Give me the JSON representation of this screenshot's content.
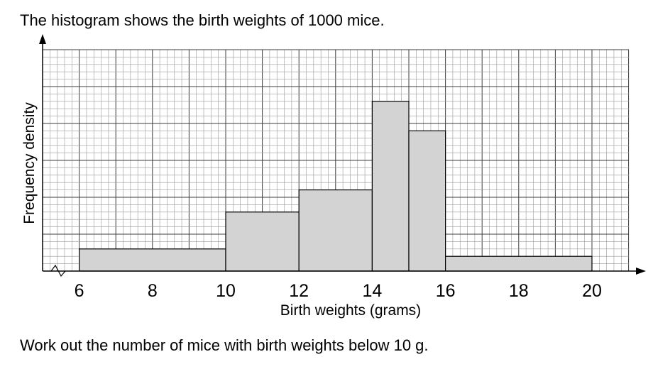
{
  "intro_text": "The histogram shows the birth weights of 1000 mice.",
  "question_text": "Work out the number of mice with birth weights below 10 g.",
  "colors": {
    "bar_fill": "#d3d3d3",
    "grid_minor": "#9a9a9a",
    "grid_major": "#3c3c3c"
  },
  "chart_data": {
    "type": "histogram",
    "title": "",
    "xlabel": "Birth weights (grams)",
    "ylabel": "Frequency density",
    "x_ticks": [
      6,
      8,
      10,
      12,
      14,
      16,
      18,
      20
    ],
    "xlim": [
      5,
      21
    ],
    "ylim": [
      0,
      6
    ],
    "y_scale_labelled": false,
    "axis_break_on_x": true,
    "grid": true,
    "bars": [
      {
        "from": 6,
        "to": 10,
        "height": 0.6
      },
      {
        "from": 10,
        "to": 12,
        "height": 1.6
      },
      {
        "from": 12,
        "to": 14,
        "height": 2.2
      },
      {
        "from": 14,
        "to": 15,
        "height": 4.6
      },
      {
        "from": 15,
        "to": 16,
        "height": 3.8
      },
      {
        "from": 16,
        "to": 20,
        "height": 0.4
      }
    ]
  }
}
